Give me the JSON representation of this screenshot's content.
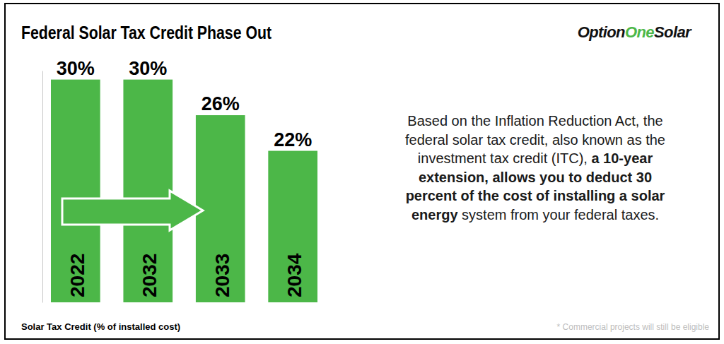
{
  "chart_data": {
    "type": "bar",
    "title": "Federal Solar Tax Credit Phase Out",
    "categories": [
      "2022",
      "2032",
      "2033",
      "2034"
    ],
    "values": [
      30,
      30,
      26,
      22
    ],
    "value_labels": [
      "30%",
      "30%",
      "26%",
      "22%"
    ],
    "data_labels": true,
    "color": "#4cb748",
    "ylim": [
      5,
      31
    ],
    "tick_labels": "x",
    "annotations": {
      "logo": [
        "Option",
        "One",
        "Solar"
      ],
      "description": [
        [
          "Based on the Inflation Reduction Act, the"
        ],
        [
          "federal solar tax credit, also known as the"
        ],
        [
          "investment tax credit (ITC), ",
          "a 10-year"
        ],
        [
          "extension, allows you to deduct 30"
        ],
        [
          "percent of the cost of installing a solar"
        ],
        [
          "energy",
          " system from your federal taxes."
        ]
      ],
      "caption": "Solar Tax Credit (% of installed cost)",
      "footnote": "* Commercial projects will still be eligible"
    }
  }
}
